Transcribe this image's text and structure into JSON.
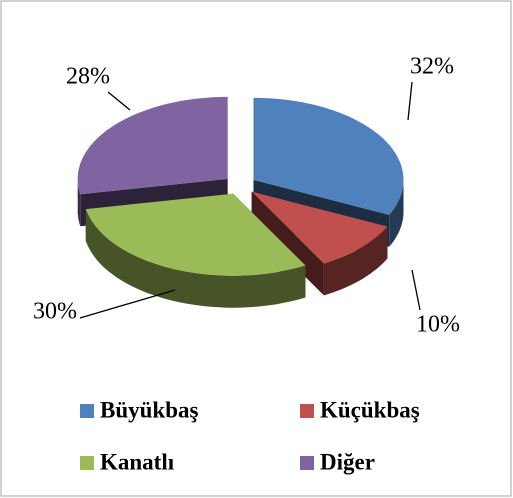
{
  "chart_data": {
    "type": "pie3d",
    "categories": [
      "Büyükbaş",
      "Küçükbaş",
      "Kanatlı",
      "Diğer"
    ],
    "values": [
      32,
      10,
      30,
      28
    ],
    "value_labels": [
      "32%",
      "10%",
      "30%",
      "28%"
    ],
    "colors": [
      "#4f81bd",
      "#c0504d",
      "#9bbb59",
      "#8064a2"
    ],
    "legend": "bottom"
  }
}
